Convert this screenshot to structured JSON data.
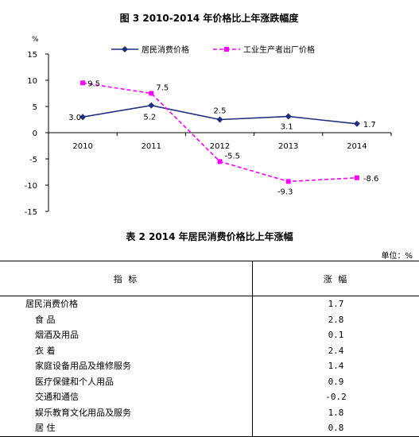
{
  "chart_data": {
    "type": "line",
    "title": "图 3  2010-2014 年价格比上年涨跌幅度",
    "ylabel": "%",
    "categories": [
      "2010",
      "2011",
      "2012",
      "2013",
      "2014"
    ],
    "ylim": [
      -15,
      15
    ],
    "yticks": [
      15,
      10,
      5,
      0,
      -5,
      -10,
      -15
    ],
    "legend_position": "top",
    "series": [
      {
        "name": "居民消费价格",
        "values": [
          3.0,
          5.2,
          2.5,
          3.1,
          1.7
        ],
        "labels": [
          "3.0",
          "5.2",
          "2.5",
          "3.1",
          "1.7"
        ],
        "color": "#1f2f7f",
        "marker": "diamond",
        "line": "solid"
      },
      {
        "name": "工业生产者出厂价格",
        "values": [
          9.5,
          7.5,
          -5.5,
          -9.3,
          -8.6
        ],
        "labels": [
          "9.5",
          "7.5",
          "-5.5",
          "-9.3",
          "-8.6"
        ],
        "color": "#ff00ff",
        "marker": "square",
        "line": "dashed"
      }
    ]
  },
  "table": {
    "title": "表 2  2014 年居民消费价格比上年涨幅",
    "unit": "单位：%",
    "headers": [
      "指    标",
      "涨    幅"
    ],
    "rows": [
      {
        "name": "居民消费价格",
        "value": "1.7"
      },
      {
        "name": "食    品",
        "value": "2.8"
      },
      {
        "name": "烟酒及用品",
        "value": "0.1"
      },
      {
        "name": "衣    着",
        "value": "2.4"
      },
      {
        "name": "家庭设备用品及维修服务",
        "value": "1.4"
      },
      {
        "name": "医疗保健和个人用品",
        "value": "0.9"
      },
      {
        "name": "交通和通信",
        "value": "-0.2"
      },
      {
        "name": "娱乐教育文化用品及服务",
        "value": "1.8"
      },
      {
        "name": "居    住",
        "value": "0.8"
      }
    ]
  }
}
